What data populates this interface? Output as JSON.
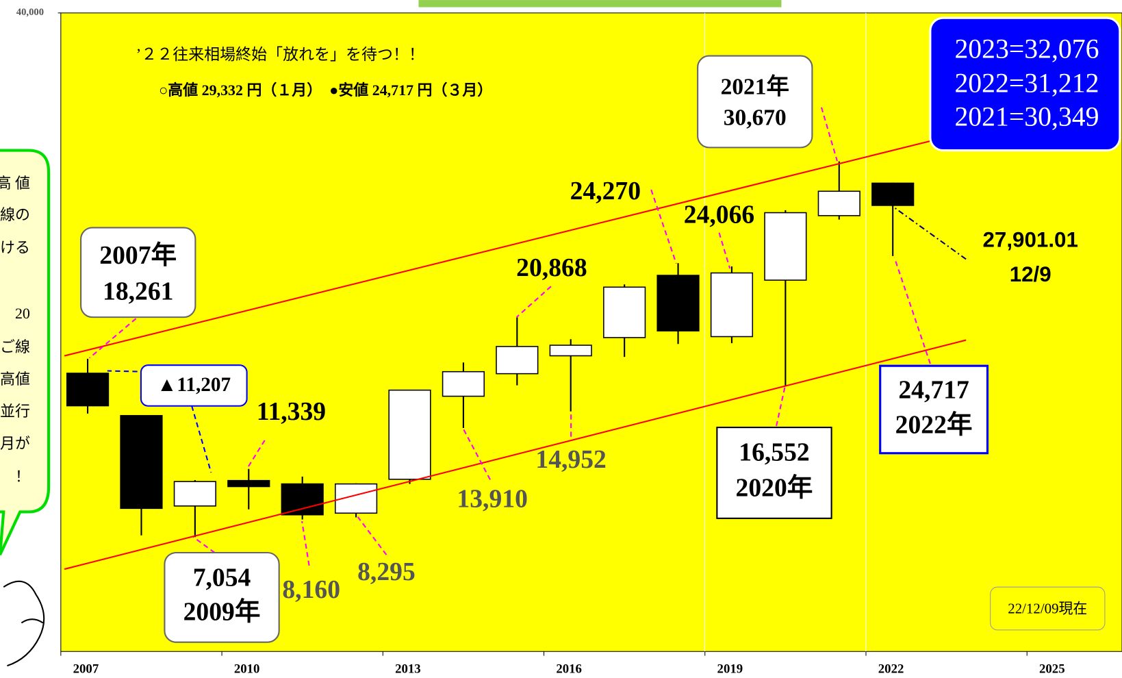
{
  "chart_data": {
    "type": "candlestick",
    "x": [
      2007,
      2008,
      2009,
      2010,
      2011,
      2012,
      2013,
      2014,
      2015,
      2016,
      2017,
      2018,
      2019,
      2020,
      2021,
      2022
    ],
    "open": [
      17353,
      14691,
      9010,
      10609,
      10398,
      8560,
      10688,
      15908,
      17325,
      18450,
      19594,
      23506,
      19655,
      23204,
      27258,
      29301
    ],
    "high": [
      18261,
      14691,
      10640,
      11339,
      10858,
      10433,
      16321,
      18031,
      20868,
      19494,
      22938,
      24270,
      24066,
      27602,
      30670,
      29332
    ],
    "low": [
      14820,
      7163,
      7054,
      8797,
      8160,
      8295,
      10398,
      13910,
      16592,
      14952,
      18380,
      19191,
      19241,
      16552,
      27013,
      24717
    ],
    "close": [
      15307,
      8859,
      10546,
      10229,
      8455,
      10395,
      16291,
      17451,
      19034,
      19114,
      22765,
      20015,
      23657,
      27444,
      28791,
      27901
    ],
    "xlim": [
      2007,
      2026.77
    ],
    "xticks": [
      2007,
      2010,
      2013,
      2016,
      2019,
      2022,
      2025
    ],
    "ylim": [
      0,
      40000
    ],
    "yticks": [
      {
        "value": 40000,
        "label": "40,000"
      }
    ],
    "up_color": "#ffffff",
    "down_color": "#000000",
    "background": "#ffff00"
  },
  "annotations": {
    "headline": "’２２往来相場終始「放れを」を待つ！！",
    "subline": "○高値 29,332 円（１月）　●安値 24,717 円（３月）",
    "forecast": [
      "2023=32,076",
      "2022=31,212",
      "2021=30,349"
    ],
    "box_2021": [
      "2021年",
      "30,670"
    ],
    "box_2007": [
      "2007年",
      "18,261"
    ],
    "drop": "▲11,207",
    "high_2010": "11,339",
    "box_2009": [
      "7,054",
      "2009年"
    ],
    "low_2011": "8,160",
    "low_2012": "8,295",
    "low_2014": "13,910",
    "low_2016": "14,952",
    "high_2015": "20,868",
    "high_2018": "24,270",
    "high_2019": "24,066",
    "box_2020": [
      "16,552",
      "2020年"
    ],
    "box_2022": [
      "24,717",
      "2022年"
    ],
    "current": [
      "27,901.01",
      "12/9"
    ],
    "as_of": "22/12/09現在",
    "side_note": [
      "高 値",
      "線の",
      "ける",
      "20",
      "ご線",
      "高値",
      "並行",
      "月が",
      "！"
    ]
  }
}
